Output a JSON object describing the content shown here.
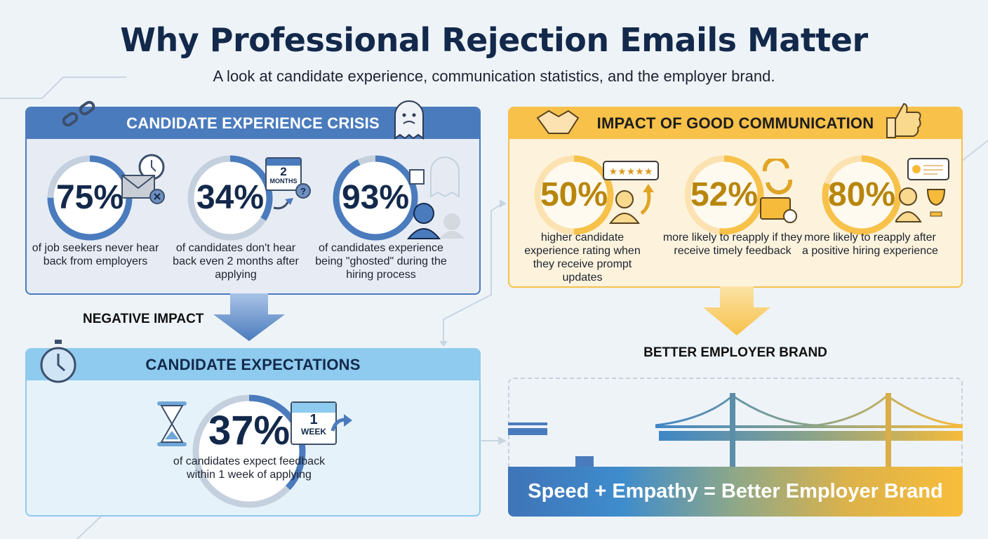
{
  "header": {
    "title": "Why Professional Rejection Emails Matter",
    "subtitle": "A look at candidate experience, communication statistics, and the employer brand."
  },
  "colors": {
    "navy": "#13294b",
    "blue": "#4a7bbd",
    "light_blue": "#8ecbee",
    "gold": "#f7c14a",
    "gold_text": "#b8860b"
  },
  "crisis": {
    "title": "CANDIDATE EXPERIENCE CRISIS",
    "icons": [
      "broken-chain-icon",
      "sad-ghost-icon"
    ],
    "stats": [
      {
        "value": "75%",
        "percent": 75,
        "caption": "of job seekers never hear back from employers",
        "icon": "envelope-clock-icon"
      },
      {
        "value": "34%",
        "percent": 34,
        "caption": "of candidates don't hear back even 2 months after applying",
        "icon": "calendar-icon",
        "calendar_number": "2",
        "calendar_unit": "MONTHS"
      },
      {
        "value": "93%",
        "percent": 93,
        "caption": "of candidates experience being \"ghosted\" during the hiring process",
        "icon": "ghost-person-icon"
      }
    ]
  },
  "negative_label": "NEGATIVE IMPACT",
  "expectations": {
    "title": "CANDIDATE EXPECTATIONS",
    "value": "37%",
    "percent": 37,
    "caption": "of candidates expect feedback within 1 week of applying",
    "calendar_number": "1",
    "calendar_unit": "WEEK"
  },
  "impact": {
    "title": "IMPACT OF GOOD COMMUNICATION",
    "icons": [
      "handshake-icon",
      "thumbs-up-icon"
    ],
    "stats": [
      {
        "value": "50%",
        "percent": 50,
        "caption": "higher candidate experience rating when they receive prompt updates",
        "icon": "star-rating-person-icon"
      },
      {
        "value": "52%",
        "percent": 52,
        "caption": "more likely to reapply if they receive timely feedback",
        "icon": "refresh-briefcase-icon"
      },
      {
        "value": "80%",
        "percent": 80,
        "caption": "more likely to reapply after a positive hiring experience",
        "icon": "person-trophy-icon"
      }
    ]
  },
  "brand_label": "BETTER EMPLOYER BRAND",
  "bridge": {
    "banner": "Speed + Empathy = Better Employer Brand"
  }
}
